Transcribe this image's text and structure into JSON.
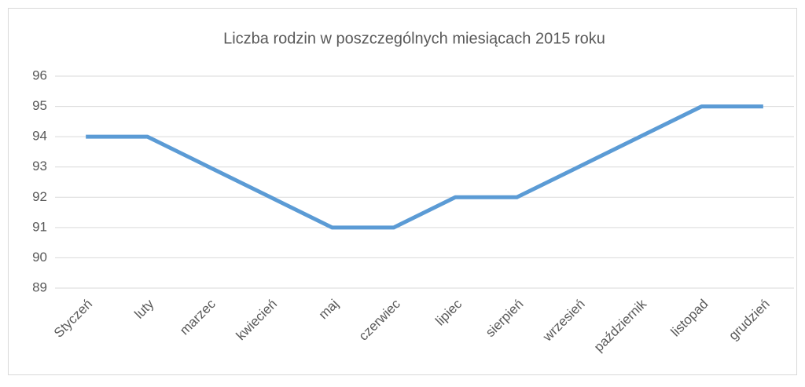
{
  "chart_data": {
    "type": "line",
    "title": "Liczba rodzin w poszczególnych miesiącach 2015 roku",
    "categories": [
      "Styczeń",
      "luty",
      "marzec",
      "kwiecień",
      "maj",
      "czerwiec",
      "lipiec",
      "sierpień",
      "wrzesień",
      "październik",
      "listopad",
      "grudzień"
    ],
    "values": [
      94,
      94,
      93,
      92,
      91,
      91,
      92,
      92,
      93,
      94,
      95,
      95
    ],
    "color": "#5b9bd5",
    "ylim": [
      89,
      96
    ],
    "yticks": [
      89,
      90,
      91,
      92,
      93,
      94,
      95,
      96
    ],
    "grid": true
  }
}
